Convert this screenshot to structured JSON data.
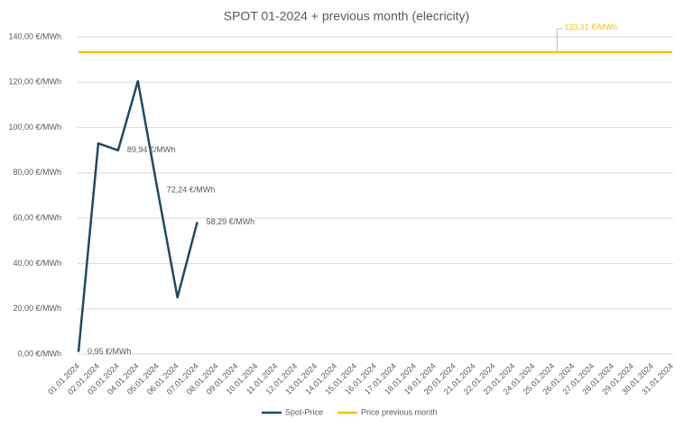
{
  "chart_data": {
    "type": "line",
    "title": "SPOT 01-2024 + previous month (elecricity)",
    "categories": [
      "01.01.2024",
      "02.01.2024",
      "03.01.2024",
      "04.01.2024",
      "05.01.2024",
      "06.01.2024",
      "07.01.2024",
      "08.01.2024",
      "09.01.2024",
      "10.01.2024",
      "11.01.2024",
      "12.01.2024",
      "13.01.2024",
      "14.01.2024",
      "15.01.2024",
      "16.01.2024",
      "17.01.2024",
      "18.01.2024",
      "19.01.2024",
      "20.01.2024",
      "21.01.2024",
      "22.01.2024",
      "23.01.2024",
      "24.01.2024",
      "25.01.2024",
      "26.01.2024",
      "27.01.2024",
      "28.01.2024",
      "29.01.2024",
      "30.01.2024",
      "31.01.2024"
    ],
    "series": [
      {
        "name": "Spot-Price",
        "color": "#1f4a66",
        "values": [
          0.95,
          93,
          89.94,
          120.5,
          72.24,
          25,
          58.29,
          null,
          null,
          null,
          null,
          null,
          null,
          null,
          null,
          null,
          null,
          null,
          null,
          null,
          null,
          null,
          null,
          null,
          null,
          null,
          null,
          null,
          null,
          null,
          null
        ],
        "value_labels": [
          "0,95 €/MWh",
          null,
          "89,94 €/MWh",
          null,
          "72,24 €/MWh",
          null,
          "58,29 €/MWh",
          null,
          null,
          null,
          null,
          null,
          null,
          null,
          null,
          null,
          null,
          null,
          null,
          null,
          null,
          null,
          null,
          null,
          null,
          null,
          null,
          null,
          null,
          null,
          null
        ]
      },
      {
        "name": "Price previous month",
        "color": "#f2c314",
        "values": [
          133.31,
          133.31,
          133.31,
          133.31,
          133.31,
          133.31,
          133.31,
          133.31,
          133.31,
          133.31,
          133.31,
          133.31,
          133.31,
          133.31,
          133.31,
          133.31,
          133.31,
          133.31,
          133.31,
          133.31,
          133.31,
          133.31,
          133.31,
          133.31,
          133.31,
          133.31,
          133.31,
          133.31,
          133.31,
          133.31,
          133.31
        ],
        "value_labels": [
          null,
          null,
          null,
          null,
          null,
          null,
          null,
          null,
          null,
          null,
          null,
          null,
          null,
          null,
          null,
          null,
          null,
          null,
          null,
          null,
          null,
          null,
          null,
          null,
          "133,31 €/MWh",
          null,
          null,
          null,
          null,
          null,
          null
        ]
      }
    ],
    "ylim": [
      0,
      140
    ],
    "yticks": [
      {
        "value": 0,
        "label": "0,00 €/MWh"
      },
      {
        "value": 20,
        "label": "20,00 €/MWh"
      },
      {
        "value": 40,
        "label": "40,00 €/MWh"
      },
      {
        "value": 60,
        "label": "60,00 €/MWh"
      },
      {
        "value": 80,
        "label": "80,00 €/MWh"
      },
      {
        "value": 100,
        "label": "100,00 €/MWh"
      },
      {
        "value": 120,
        "label": "120,00 €/MWh"
      },
      {
        "value": 140,
        "label": "140,00 €/MWh"
      }
    ],
    "grid": true,
    "legend": "bottom"
  }
}
